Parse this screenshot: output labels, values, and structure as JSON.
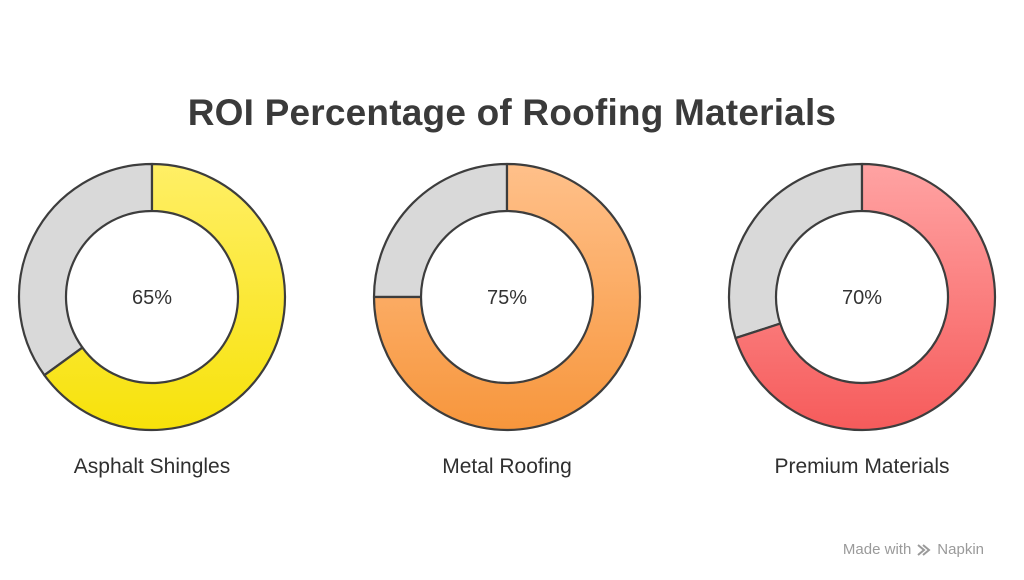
{
  "chart_data": {
    "type": "pie",
    "title": "ROI Percentage of Roofing Materials",
    "series": [
      {
        "name": "Asphalt Shingles",
        "value": 65,
        "label": "65%",
        "color_top": "#ffef66",
        "color_bottom": "#f7e20a"
      },
      {
        "name": "Metal Roofing",
        "value": 75,
        "label": "75%",
        "color_top": "#ffc08a",
        "color_bottom": "#f7963c"
      },
      {
        "name": "Premium Materials",
        "value": 70,
        "label": "70%",
        "color_top": "#ffa3a3",
        "color_bottom": "#f65b5b"
      }
    ],
    "remainder_color": "#d9d9d9",
    "outline_color": "#3d3d3d"
  },
  "watermark": {
    "made_with": "Made with",
    "brand": "Napkin"
  }
}
